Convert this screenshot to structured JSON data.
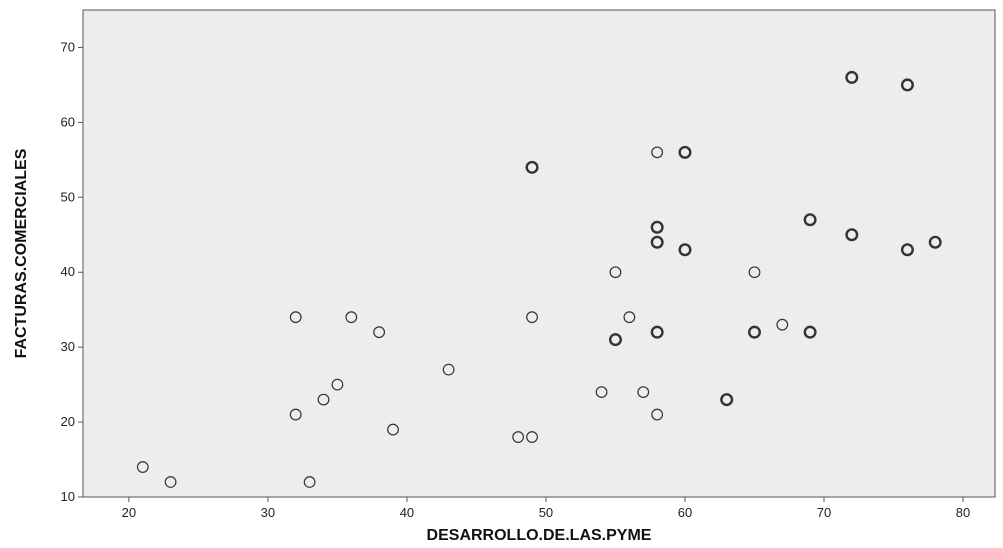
{
  "chart_data": {
    "type": "scatter",
    "title": "",
    "xlabel": "DESARROLLO.DE.LAS.PYME",
    "ylabel": "FACTURAS.COMERCIALES",
    "xlim": [
      16.7,
      82.3
    ],
    "ylim": [
      10,
      75
    ],
    "xticks": [
      20,
      30,
      40,
      50,
      60,
      70,
      80
    ],
    "yticks": [
      10,
      20,
      30,
      40,
      50,
      60,
      70
    ],
    "grid": false,
    "colors": {
      "plot_background": "#ededed",
      "marker_stroke": "#333333",
      "axis": "#555555"
    },
    "points": [
      {
        "x": 21,
        "y": 14,
        "count": 1
      },
      {
        "x": 23,
        "y": 12,
        "count": 1
      },
      {
        "x": 32,
        "y": 34,
        "count": 1
      },
      {
        "x": 32,
        "y": 21,
        "count": 1
      },
      {
        "x": 33,
        "y": 12,
        "count": 1
      },
      {
        "x": 34,
        "y": 23,
        "count": 1
      },
      {
        "x": 35,
        "y": 25,
        "count": 1
      },
      {
        "x": 36,
        "y": 34,
        "count": 1
      },
      {
        "x": 38,
        "y": 32,
        "count": 1
      },
      {
        "x": 39,
        "y": 19,
        "count": 1
      },
      {
        "x": 43,
        "y": 27,
        "count": 1
      },
      {
        "x": 48,
        "y": 18,
        "count": 1
      },
      {
        "x": 49,
        "y": 18,
        "count": 1
      },
      {
        "x": 49,
        "y": 34,
        "count": 1
      },
      {
        "x": 49,
        "y": 54,
        "count": 2
      },
      {
        "x": 54,
        "y": 24,
        "count": 1
      },
      {
        "x": 55,
        "y": 40,
        "count": 1
      },
      {
        "x": 55,
        "y": 31,
        "count": 2
      },
      {
        "x": 56,
        "y": 34,
        "count": 1
      },
      {
        "x": 57,
        "y": 24,
        "count": 1
      },
      {
        "x": 58,
        "y": 56,
        "count": 1
      },
      {
        "x": 58,
        "y": 46,
        "count": 2
      },
      {
        "x": 58,
        "y": 44,
        "count": 2
      },
      {
        "x": 58,
        "y": 32,
        "count": 2
      },
      {
        "x": 58,
        "y": 21,
        "count": 1
      },
      {
        "x": 60,
        "y": 56,
        "count": 2
      },
      {
        "x": 60,
        "y": 43,
        "count": 2
      },
      {
        "x": 63,
        "y": 23,
        "count": 2
      },
      {
        "x": 65,
        "y": 40,
        "count": 1
      },
      {
        "x": 65,
        "y": 32,
        "count": 2
      },
      {
        "x": 67,
        "y": 33,
        "count": 1
      },
      {
        "x": 69,
        "y": 47,
        "count": 2
      },
      {
        "x": 69,
        "y": 32,
        "count": 2
      },
      {
        "x": 72,
        "y": 66,
        "count": 2
      },
      {
        "x": 72,
        "y": 45,
        "count": 2
      },
      {
        "x": 76,
        "y": 65,
        "count": 2
      },
      {
        "x": 76,
        "y": 43,
        "count": 2
      },
      {
        "x": 78,
        "y": 44,
        "count": 2
      }
    ]
  }
}
